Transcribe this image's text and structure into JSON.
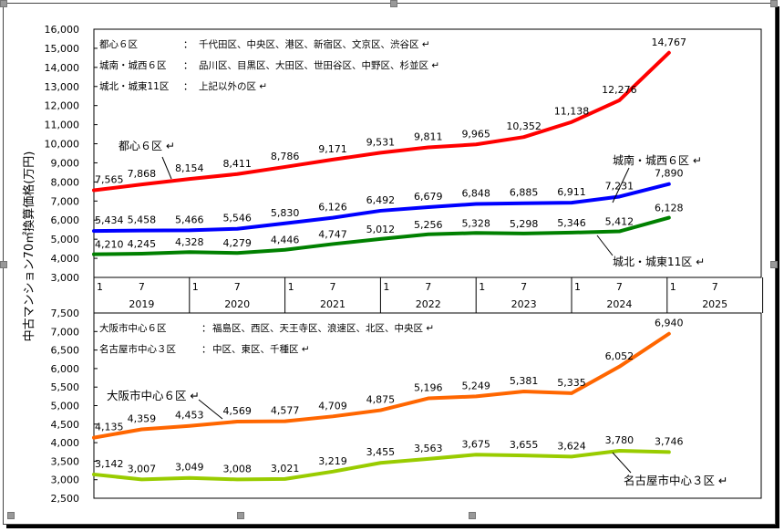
{
  "chart_data": [
    {
      "type": "line",
      "title": "",
      "ylabel": "中古マンション70㎡換算価格(万円)",
      "ylim": [
        3000,
        16000
      ],
      "yticks": [
        "3,000",
        "4,000",
        "5,000",
        "6,000",
        "7,000",
        "8,000",
        "9,000",
        "10,000",
        "11,000",
        "12,000",
        "13,000",
        "14,000",
        "15,000",
        "16,000"
      ],
      "x_month_labels": [
        "1",
        "7",
        "1",
        "7",
        "1",
        "7",
        "1",
        "7",
        "1",
        "7",
        "1",
        "7",
        "1",
        "7"
      ],
      "x_year_labels": [
        "2019",
        "2020",
        "2021",
        "2022",
        "2023",
        "2024",
        "2025"
      ],
      "x": [
        "2019-01",
        "2019-07",
        "2020-01",
        "2020-07",
        "2021-01",
        "2021-07",
        "2022-01",
        "2022-07",
        "2023-01",
        "2023-07",
        "2024-01",
        "2024-07",
        "2025-01"
      ],
      "legend_notes": [
        {
          "name": "都心６区",
          "sep": "：",
          "desc": "千代田区、中央区、港区、新宿区、文京区、渋谷区"
        },
        {
          "name": "城南・城西６区",
          "sep": "：",
          "desc": "品川区、目黒区、大田区、世田谷区、中野区、杉並区"
        },
        {
          "name": "城北・城東11区",
          "sep": "：",
          "desc": "上記以外の区"
        }
      ],
      "series": [
        {
          "name": "都心６区",
          "color": "#ff0000",
          "values": [
            7565,
            7868,
            8154,
            8411,
            8786,
            9171,
            9531,
            9811,
            9965,
            10352,
            11138,
            12276,
            14767
          ],
          "labels": [
            "7,565",
            "7,868",
            "8,154",
            "8,411",
            "8,786",
            "9,171",
            "9,531",
            "9,811",
            "9,965",
            "10,352",
            "11,138",
            "12,276",
            "14,767"
          ]
        },
        {
          "name": "城南・城西６区",
          "color": "#0000ff",
          "values": [
            5434,
            5458,
            5466,
            5546,
            5830,
            6126,
            6492,
            6679,
            6848,
            6885,
            6911,
            7231,
            7890
          ],
          "labels": [
            "5,434",
            "5,458",
            "5,466",
            "5,546",
            "5,830",
            "6,126",
            "6,492",
            "6,679",
            "6,848",
            "6,885",
            "6,911",
            "7,231",
            "7,890"
          ]
        },
        {
          "name": "城北・城東11区",
          "color": "#008000",
          "values": [
            4210,
            4245,
            4328,
            4279,
            4446,
            4747,
            5012,
            5256,
            5328,
            5298,
            5346,
            5412,
            6128
          ],
          "labels": [
            "4,210",
            "4,245",
            "4,328",
            "4,279",
            "4,446",
            "4,747",
            "5,012",
            "5,256",
            "5,328",
            "5,298",
            "5,346",
            "5,412",
            "6,128"
          ]
        }
      ]
    },
    {
      "type": "line",
      "ylim": [
        2500,
        7500
      ],
      "yticks": [
        "2,500",
        "3,000",
        "3,500",
        "4,000",
        "4,500",
        "5,000",
        "5,500",
        "6,000",
        "6,500",
        "7,000",
        "7,500"
      ],
      "legend_notes": [
        {
          "name": "大阪市中心６区",
          "sep": "：",
          "desc": "福島区、西区、天王寺区、浪速区、北区、中央区"
        },
        {
          "name": "名古屋市中心３区",
          "sep": "：",
          "desc": "中区、東区、千種区"
        }
      ],
      "series": [
        {
          "name": "大阪市中心６区",
          "color": "#ff6600",
          "values": [
            4135,
            4359,
            4453,
            4569,
            4577,
            4709,
            4875,
            5196,
            5249,
            5381,
            5335,
            6052,
            6940
          ],
          "labels": [
            "4,135",
            "4,359",
            "4,453",
            "4,569",
            "4,577",
            "4,709",
            "4,875",
            "5,196",
            "5,249",
            "5,381",
            "5,335",
            "6,052",
            "6,940"
          ]
        },
        {
          "name": "名古屋市中心３区",
          "color": "#99cc00",
          "values": [
            3142,
            3007,
            3049,
            3008,
            3021,
            3219,
            3455,
            3563,
            3675,
            3655,
            3624,
            3780,
            3746
          ],
          "labels": [
            "3,142",
            "3,007",
            "3,049",
            "3,008",
            "3,021",
            "3,219",
            "3,455",
            "3,563",
            "3,675",
            "3,655",
            "3,624",
            "3,780",
            "3,746"
          ]
        }
      ]
    }
  ]
}
